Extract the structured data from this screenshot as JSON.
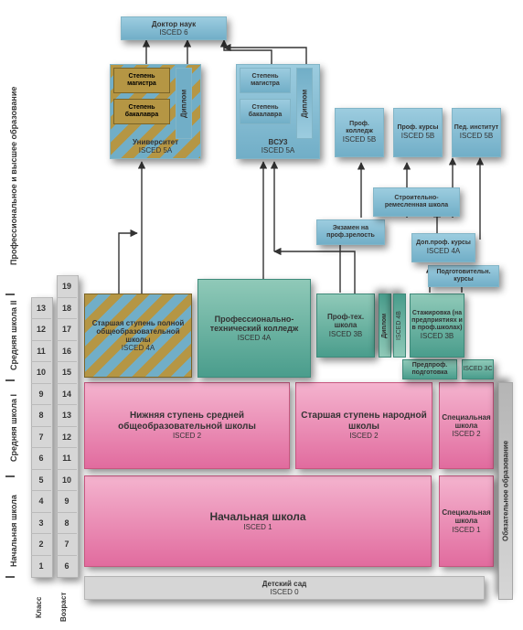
{
  "diagram": {
    "type": "flowchart"
  },
  "colors": {
    "blue_dark": "#4c8aa5",
    "blue_mid": "#71aec7",
    "blue_light": "#9cccdf",
    "blue_col": "#82b5c7",
    "olive": "#b59644",
    "olive_edge": "#7a6428",
    "green_dark": "#4a9d8c",
    "green_light": "#8fc9b8",
    "green_col": "#3f8a7a",
    "pink_dark": "#e16b9e",
    "pink_light": "#f4b3ce",
    "pink_col": "#c7567f",
    "grey_light": "#d6d6d6",
    "grey_dark": "#b5b5b5",
    "grey_col": "#a6a6a6",
    "text": "#333333"
  },
  "left": {
    "higher": "Профессиональное и высшее образование",
    "sec2": "Средняя школа II",
    "sec1": "Средняя школа I",
    "prim": "Начальная школа",
    "klass": "Класс",
    "age": "Возраст"
  },
  "right": {
    "compulsory": "Обязательное образование"
  },
  "grades": [
    "1",
    "2",
    "3",
    "4",
    "5",
    "6",
    "7",
    "8",
    "9",
    "10",
    "11",
    "12",
    "13"
  ],
  "ages": [
    "6",
    "7",
    "8",
    "9",
    "10",
    "11",
    "12",
    "13",
    "14",
    "15",
    "16",
    "17",
    "18",
    "19"
  ],
  "kinder": {
    "name": "Детский сад",
    "isced": "ISCED 0"
  },
  "primary": {
    "name": "Начальная школа",
    "isced": "ISCED 1"
  },
  "primary_spec": {
    "name": "Специальная школа",
    "isced": "ISCED 1"
  },
  "lowsec": {
    "name": "Нижняя ступень средней общеобразовательной школы",
    "isced": "ISCED 2"
  },
  "folk": {
    "name": "Старшая ступень народной школы",
    "isced": "ISCED 2"
  },
  "lowsec_spec": {
    "name": "Специальная школа",
    "isced": "ISCED 2"
  },
  "upp_gen": {
    "name": "Старшая ступень полной общеобразовательной школы",
    "isced": "ISCED 4A"
  },
  "upp_tech": {
    "name": "Профессионально-технический колледж",
    "isced": "ISCED 4A"
  },
  "upp_voc": {
    "name": "Проф-тех. школа",
    "isced": "ISCED 3B"
  },
  "diplom_col": "Диплом",
  "isced4b": "ISCED 4B",
  "intern": {
    "name": "Стажировка (на предприятиях и в проф.школах)",
    "isced": "ISCED 3B"
  },
  "prevoc": {
    "name": "Предпроф. подготовка",
    "isced": "ISCED 3C"
  },
  "prep": {
    "name": "Подготовительн. курсы"
  },
  "addprof": {
    "name": "Доп.проф. курсы",
    "isced": "ISCED 4A"
  },
  "exam": {
    "name": "Экзамен на проф.зрелость"
  },
  "craft": {
    "name": "Строительно-ремесленная школа"
  },
  "uni": {
    "bach": "Степень бакалавра",
    "mag": "Степень магистра",
    "diplom": "Диплом",
    "name": "Университет",
    "isced": "ISCED 5A"
  },
  "vsuz": {
    "bach": "Степень бакалавра",
    "mag": "Степень магистра",
    "diplom": "Диплом",
    "name": "BCУ3",
    "isced": "ISCED 5A"
  },
  "doc": {
    "name": "Доктор наук",
    "isced": "ISCED 6"
  },
  "prof_college": {
    "name": "Проф. колледж",
    "isced": "ISCED 5B"
  },
  "prof_courses": {
    "name": "Проф. курсы",
    "isced": "ISCED 5B"
  },
  "ped": {
    "name": "Пед. институт",
    "isced": "ISCED 5B"
  }
}
